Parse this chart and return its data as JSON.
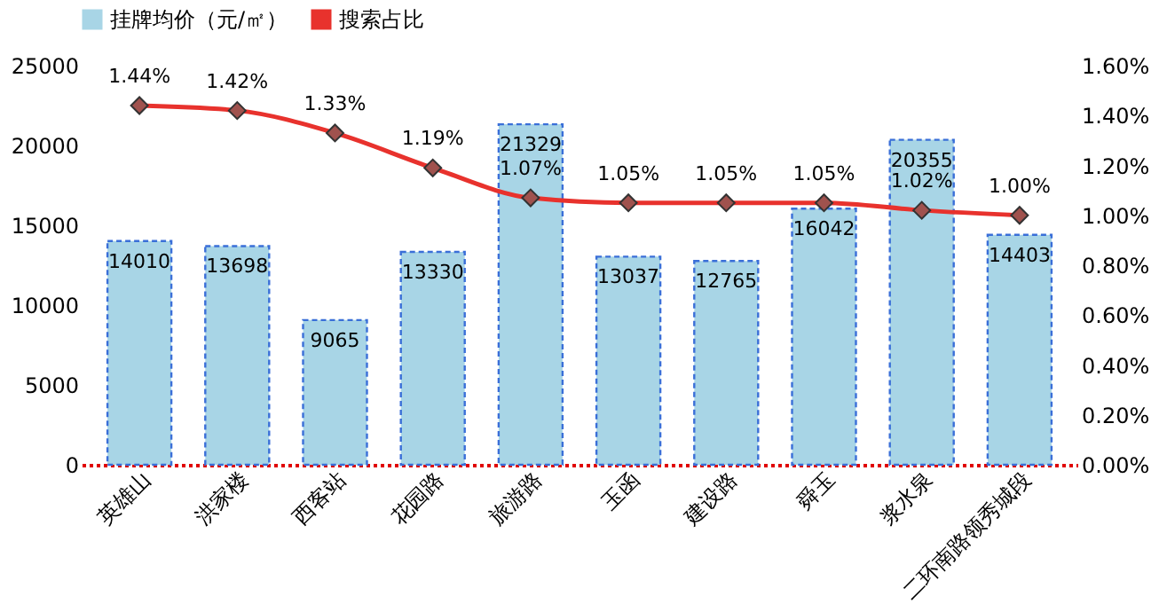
{
  "chart_data": {
    "type": "bar",
    "categories": [
      "英雄山",
      "洪家楼",
      "西客站",
      "花园路",
      "旅游路",
      "玉函",
      "建设路",
      "舜玉",
      "浆水泉",
      "二环南路领秀城段"
    ],
    "series": [
      {
        "name": "挂牌均价（元/㎡）",
        "color": "#a8d5e6",
        "values": [
          14010,
          13698,
          9065,
          13330,
          21329,
          13037,
          12765,
          16042,
          20355,
          14403
        ]
      },
      {
        "name": "搜索占比",
        "type": "line",
        "axis": "y2",
        "color": "#e8322d",
        "marker": "diamond",
        "values": [
          1.44,
          1.42,
          1.33,
          1.19,
          1.07,
          1.05,
          1.05,
          1.05,
          1.02,
          1.0
        ],
        "value_labels": [
          "1.44%",
          "1.42%",
          "1.33%",
          "1.19%",
          "1.07%",
          "1.05%",
          "1.05%",
          "1.05%",
          "1.02%",
          "1.00%"
        ]
      }
    ],
    "ylim": [
      0,
      25000
    ],
    "yticks": [
      0,
      5000,
      10000,
      15000,
      20000,
      25000
    ],
    "y2lim": [
      0,
      1.6
    ],
    "y2ticks": [
      {
        "value": 0,
        "label": "0.00%"
      },
      {
        "value": 0.2,
        "label": "0.20%"
      },
      {
        "value": 0.4,
        "label": "0.40%"
      },
      {
        "value": 0.6,
        "label": "0.60%"
      },
      {
        "value": 0.8,
        "label": "0.80%"
      },
      {
        "value": 1.0,
        "label": "1.00%"
      },
      {
        "value": 1.2,
        "label": "1.20%"
      },
      {
        "value": 1.4,
        "label": "1.40%"
      },
      {
        "value": 1.6,
        "label": "1.60%"
      }
    ],
    "legend": "top",
    "data_labels": true,
    "grid": false
  }
}
